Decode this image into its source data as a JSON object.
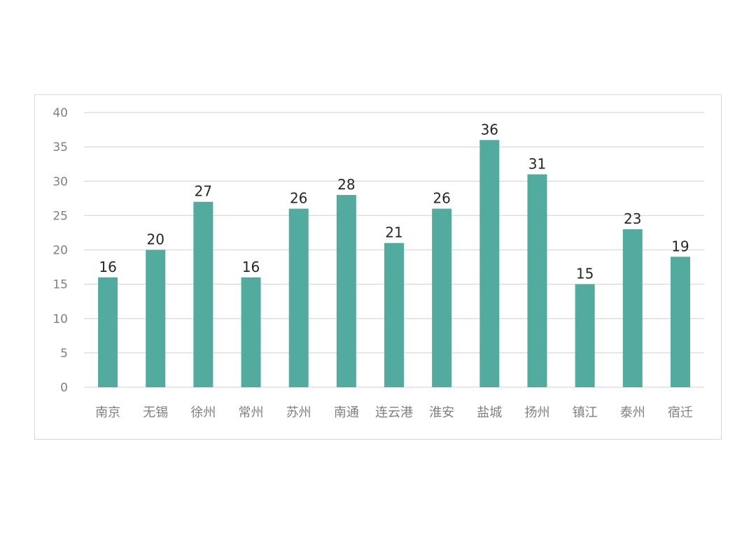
{
  "chart_data": {
    "type": "bar",
    "categories": [
      "南京",
      "无锡",
      "徐州",
      "常州",
      "苏州",
      "南通",
      "连云港",
      "淮安",
      "盐城",
      "扬州",
      "镇江",
      "泰州",
      "宿迁"
    ],
    "values": [
      16,
      20,
      27,
      16,
      26,
      28,
      21,
      26,
      36,
      31,
      15,
      23,
      19
    ],
    "ylim": [
      0,
      40
    ],
    "yticks": [
      0,
      5,
      10,
      15,
      20,
      25,
      30,
      35,
      40
    ],
    "grid": true,
    "legend": "none",
    "bar_color": "#53aa9e",
    "grid_color": "#d9d9d9"
  }
}
